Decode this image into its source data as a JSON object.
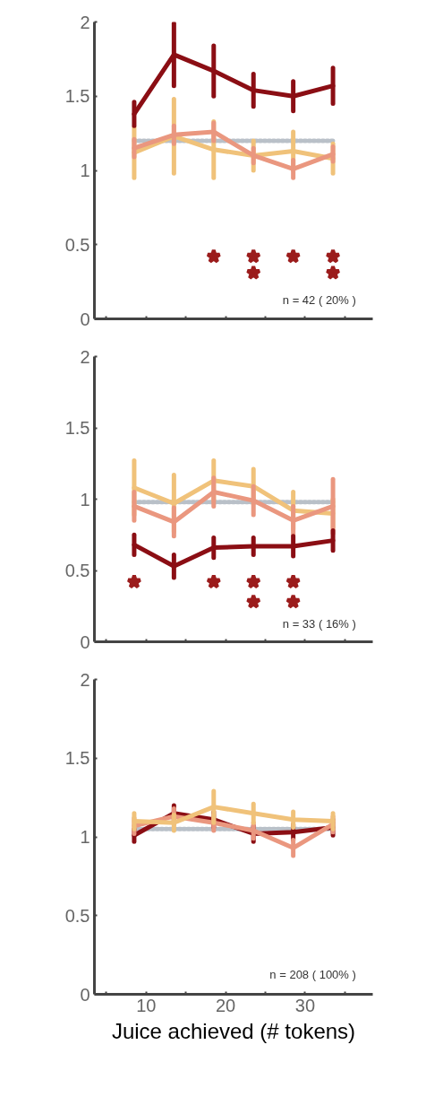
{
  "chart_data": [
    {
      "type": "line",
      "x": [
        8.5,
        13.5,
        18.5,
        23.5,
        28.5,
        33.5
      ],
      "xlim": [
        3.5,
        38.5
      ],
      "ylim": [
        0,
        2
      ],
      "xticks": [
        {
          "value": 5,
          "label": null
        },
        {
          "value": 10,
          "label": null
        },
        {
          "value": 15,
          "label": null
        },
        {
          "value": 20,
          "label": null
        },
        {
          "value": 25,
          "label": null
        },
        {
          "value": 30,
          "label": null
        },
        {
          "value": 35,
          "label": null
        }
      ],
      "yticks": [
        0,
        0.5,
        1,
        1.5,
        2
      ],
      "tick_labels": "y",
      "grid": false,
      "series": [
        {
          "color": "#b9c0c8",
          "line_style": "dotted",
          "values": [
            1.2,
            1.2,
            1.2,
            1.2,
            1.2,
            1.2
          ]
        },
        {
          "color": "#f0c27a",
          "values": [
            1.12,
            1.23,
            1.14,
            1.1,
            1.13,
            1.08
          ],
          "errors": [
            0.17,
            0.25,
            0.19,
            0.1,
            0.13,
            0.1
          ]
        },
        {
          "color": "#ea977f",
          "values": [
            1.15,
            1.24,
            1.26,
            1.1,
            1.01,
            1.11
          ],
          "errors": [
            0.06,
            0.06,
            0.06,
            0.05,
            0.06,
            0.05
          ]
        },
        {
          "color": "#8b0e14",
          "values": [
            1.38,
            1.78,
            1.67,
            1.54,
            1.5,
            1.57
          ],
          "errors": [
            0.08,
            0.21,
            0.17,
            0.11,
            0.1,
            0.12
          ]
        },
        {
          "type": "scatter",
          "marker": "star",
          "color": "#9b1c1c",
          "x": [
            18.5,
            23.5,
            23.5,
            28.5,
            33.5,
            33.5
          ],
          "values": [
            0.42,
            0.42,
            0.31,
            0.42,
            0.42,
            0.31
          ]
        }
      ],
      "annotations": [
        "n = 42 ( 20% )"
      ]
    },
    {
      "type": "line",
      "x": [
        8.5,
        13.5,
        18.5,
        23.5,
        28.5,
        33.5
      ],
      "xlim": [
        3.5,
        38.5
      ],
      "ylim": [
        0,
        2
      ],
      "xticks": [
        {
          "value": 5,
          "label": null
        },
        {
          "value": 10,
          "label": null
        },
        {
          "value": 15,
          "label": null
        },
        {
          "value": 20,
          "label": null
        },
        {
          "value": 25,
          "label": null
        },
        {
          "value": 30,
          "label": null
        },
        {
          "value": 35,
          "label": null
        }
      ],
      "yticks": [
        0,
        0.5,
        1,
        1.5,
        2
      ],
      "tick_labels": "y",
      "grid": false,
      "series": [
        {
          "color": "#b9c0c8",
          "line_style": "dotted",
          "values": [
            0.98,
            0.98,
            0.98,
            0.98,
            0.98,
            0.98
          ]
        },
        {
          "color": "#f0c27a",
          "values": [
            1.08,
            0.97,
            1.13,
            1.09,
            0.92,
            0.9
          ],
          "errors": [
            0.19,
            0.2,
            0.14,
            0.12,
            0.13,
            0.1
          ]
        },
        {
          "color": "#ea977f",
          "values": [
            0.95,
            0.84,
            1.05,
            0.99,
            0.85,
            0.95
          ],
          "errors": [
            0.1,
            0.1,
            0.1,
            0.1,
            0.1,
            0.19
          ]
        },
        {
          "color": "#8b0e14",
          "values": [
            0.68,
            0.53,
            0.66,
            0.67,
            0.67,
            0.71
          ],
          "errors": [
            0.07,
            0.08,
            0.07,
            0.06,
            0.07,
            0.07
          ]
        },
        {
          "type": "scatter",
          "marker": "star",
          "color": "#9b1c1c",
          "x": [
            8.5,
            18.5,
            23.5,
            23.5,
            28.5,
            28.5
          ],
          "values": [
            0.42,
            0.42,
            0.42,
            0.28,
            0.42,
            0.28
          ]
        }
      ],
      "annotations": [
        "n = 33 ( 16% )"
      ]
    },
    {
      "type": "line",
      "x": [
        8.5,
        13.5,
        18.5,
        23.5,
        28.5,
        33.5
      ],
      "xlim": [
        3.5,
        38.5
      ],
      "ylim": [
        0,
        2
      ],
      "xticks": [
        {
          "value": 5,
          "label": null
        },
        10,
        {
          "value": 15,
          "label": null
        },
        20,
        {
          "value": 25,
          "label": null
        },
        30,
        {
          "value": 35,
          "label": null
        }
      ],
      "yticks": [
        0,
        0.5,
        1,
        1.5,
        2
      ],
      "grid": false,
      "xlabel": "Juice achieved (# tokens)",
      "series": [
        {
          "color": "#b9c0c8",
          "line_style": "dotted",
          "values": [
            1.05,
            1.05,
            1.05,
            1.05,
            1.05,
            1.05
          ]
        },
        {
          "color": "#8b0e14",
          "values": [
            1.01,
            1.15,
            1.11,
            1.02,
            1.03,
            1.06
          ],
          "errors": [
            0.04,
            0.05,
            0.05,
            0.05,
            0.05,
            0.05
          ]
        },
        {
          "color": "#ea977f",
          "values": [
            1.07,
            1.13,
            1.09,
            1.04,
            0.93,
            1.08
          ],
          "errors": [
            0.05,
            0.05,
            0.05,
            0.05,
            0.05,
            0.05
          ]
        },
        {
          "color": "#f0c27a",
          "values": [
            1.1,
            1.09,
            1.19,
            1.15,
            1.11,
            1.1
          ],
          "errors": [
            0.05,
            0.05,
            0.1,
            0.06,
            0.05,
            0.05
          ]
        }
      ],
      "annotations": [
        "n = 208 ( 100% )"
      ]
    }
  ]
}
